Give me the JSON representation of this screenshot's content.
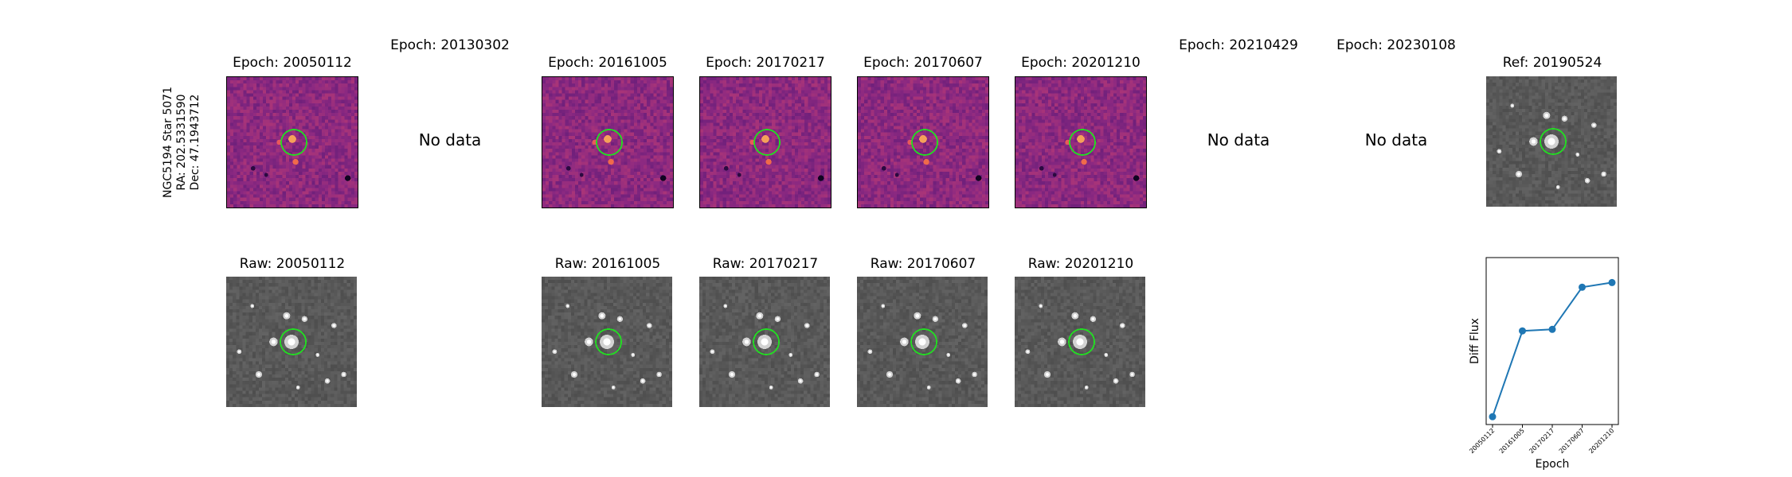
{
  "target_label": {
    "line1": "NGC5194 Star 5071",
    "line2": "RA: 202.5331590",
    "line3": "Dec: 47.1943712"
  },
  "top_row": [
    {
      "title": "Epoch: 20050112",
      "status": "diff",
      "seed": 11
    },
    {
      "title": "Epoch: 20130302",
      "status": "none",
      "no_data_text": "No data"
    },
    {
      "title": "Epoch: 20161005",
      "status": "diff",
      "seed": 23
    },
    {
      "title": "Epoch: 20170217",
      "status": "diff",
      "seed": 37
    },
    {
      "title": "Epoch: 20170607",
      "status": "diff",
      "seed": 41
    },
    {
      "title": "Epoch: 20201210",
      "status": "diff",
      "seed": 53
    },
    {
      "title": "Epoch: 20210429",
      "status": "none",
      "no_data_text": "No data"
    },
    {
      "title": "Epoch: 20230108",
      "status": "none",
      "no_data_text": "No data"
    },
    {
      "title": "Ref: 20190524",
      "status": "ref",
      "seed": 61
    }
  ],
  "bottom_row": [
    {
      "title": "Raw: 20050112",
      "seed": 71
    },
    {
      "title": "Raw: 20161005",
      "seed": 83
    },
    {
      "title": "Raw: 20170217",
      "seed": 97
    },
    {
      "title": "Raw: 20170607",
      "seed": 101
    },
    {
      "title": "Raw: 20201210",
      "seed": 113
    }
  ],
  "colors": {
    "circle": "#22dd22",
    "line": "#1f77b4",
    "diff_low": "#3b0f70",
    "diff_mid": "#8c2981",
    "diff_high": "#de4968",
    "raw_bg": "#555555"
  },
  "chart_data": {
    "type": "line",
    "x": [
      "20050112",
      "20161005",
      "20170217",
      "20170607",
      "20201210"
    ],
    "values": [
      0.0,
      0.55,
      0.56,
      0.83,
      0.86
    ],
    "xlabel": "Epoch",
    "ylabel": "Diff Flux",
    "ylim": [
      -0.05,
      1.02
    ],
    "grid": false,
    "legend": "none"
  }
}
